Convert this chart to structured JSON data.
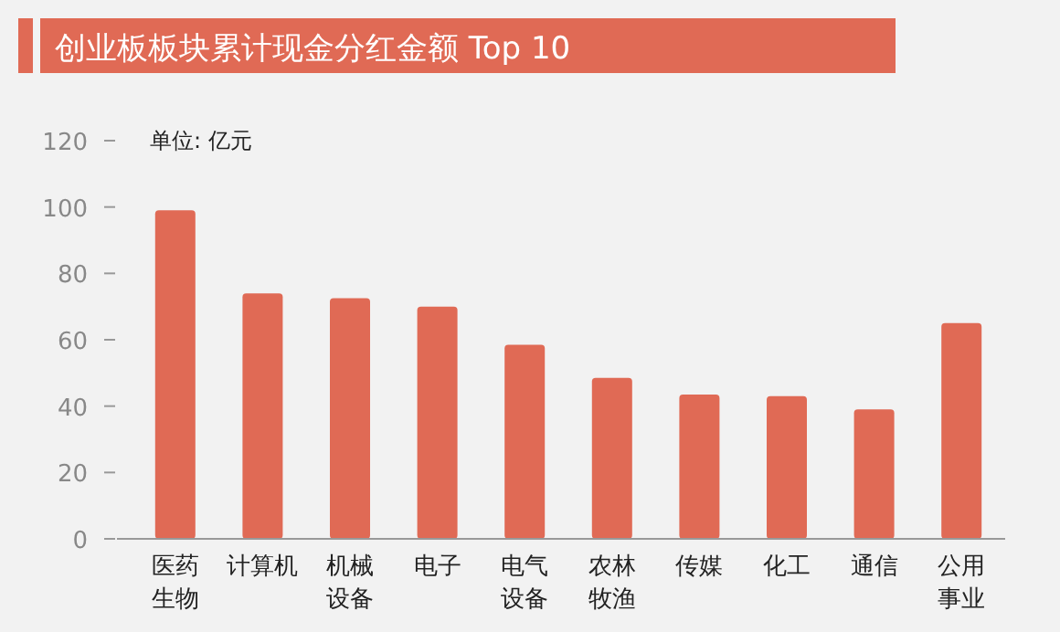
{
  "chart_data": {
    "type": "bar",
    "title": "创业板板块累计现金分红金额 Top 10",
    "annotations": [
      "单位: 亿元"
    ],
    "categories": [
      "医药生物",
      "计算机",
      "机械设备",
      "电子",
      "电气设备",
      "农林牧渔",
      "传媒",
      "化工",
      "通信",
      "公用事业"
    ],
    "values": [
      99,
      74,
      72.5,
      70,
      58.5,
      48.5,
      43.5,
      43,
      39,
      65
    ],
    "color": "#e06a55",
    "ylim": [
      0,
      120
    ],
    "yticks": [
      0,
      20,
      40,
      60,
      80,
      100,
      120
    ],
    "grid": false
  }
}
